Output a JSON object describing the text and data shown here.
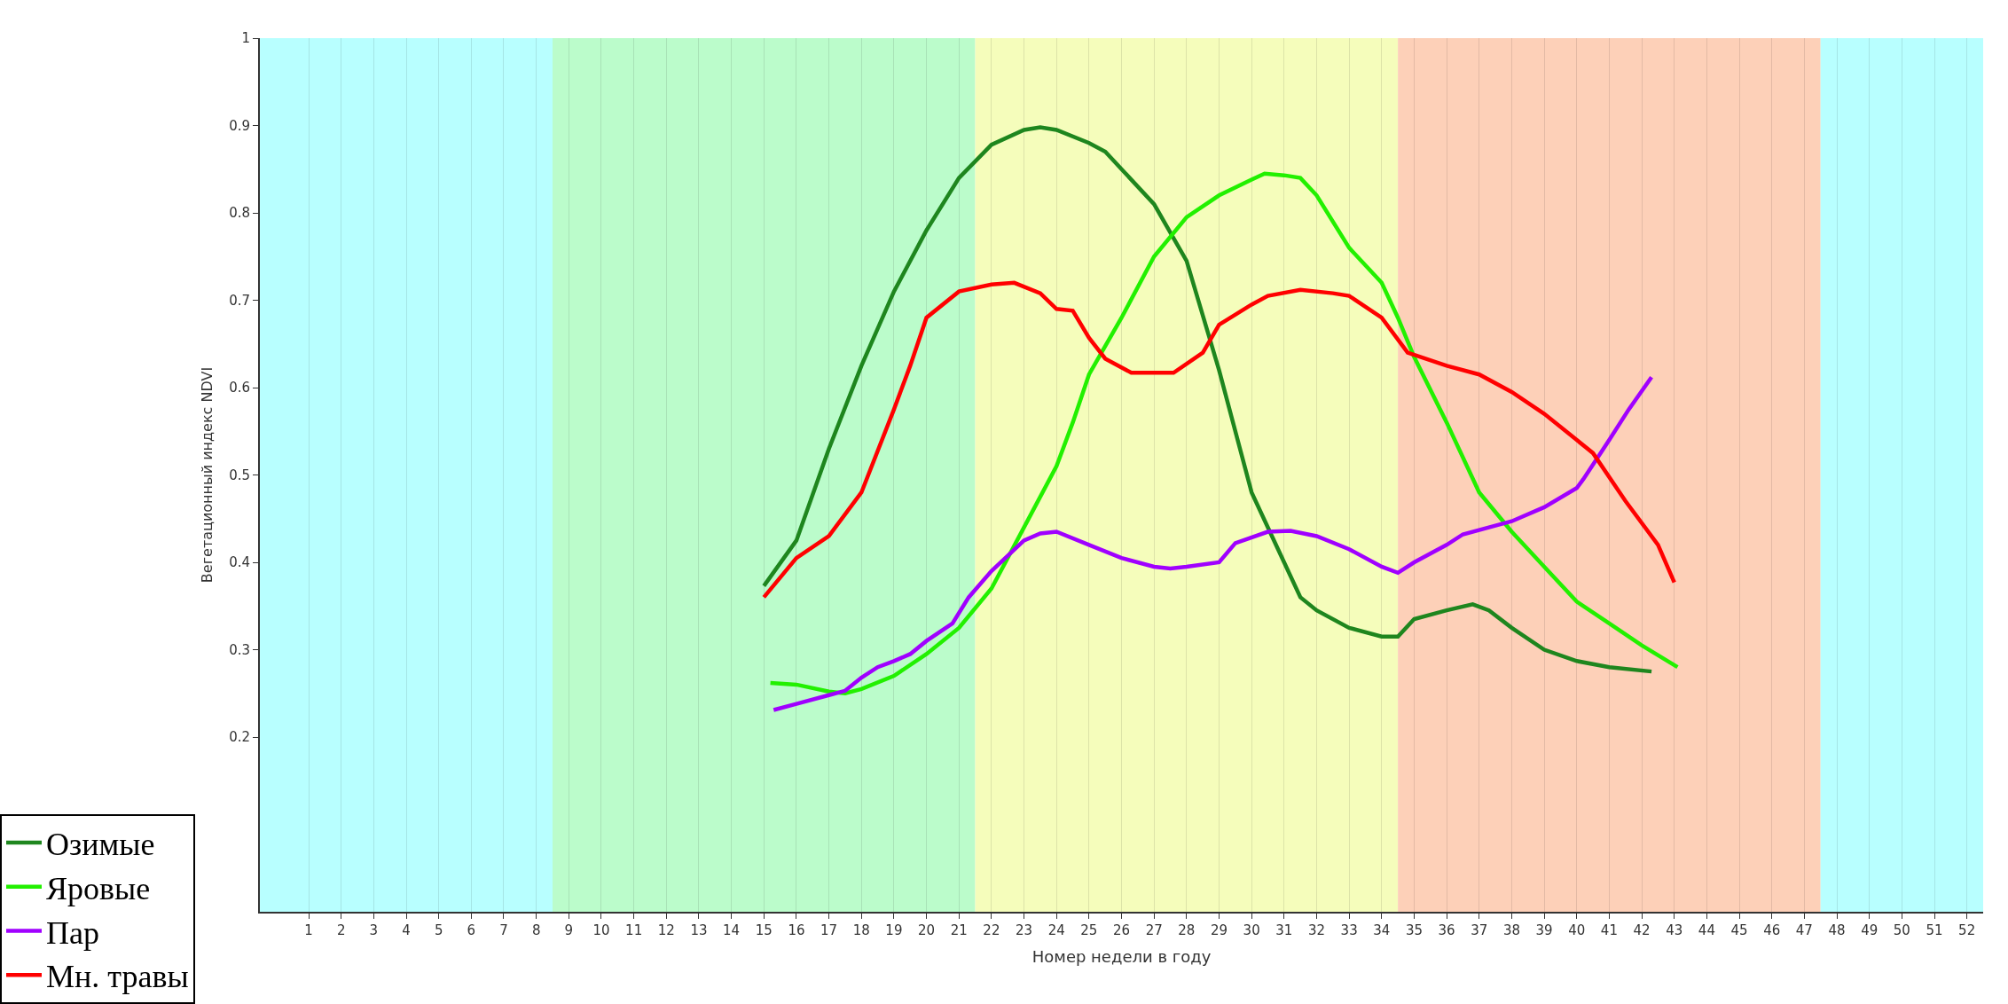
{
  "chart_data": {
    "type": "line",
    "xlabel": "Номер недели в году",
    "ylabel": "Вегетационный индекс NDVI",
    "xlim": [
      -0.5,
      52.5
    ],
    "xticks": [
      1,
      2,
      3,
      4,
      5,
      6,
      7,
      8,
      9,
      10,
      11,
      12,
      13,
      14,
      15,
      16,
      17,
      18,
      19,
      20,
      21,
      22,
      23,
      24,
      25,
      26,
      27,
      28,
      29,
      30,
      31,
      32,
      33,
      34,
      35,
      36,
      37,
      38,
      39,
      40,
      41,
      42,
      43,
      44,
      45,
      46,
      47,
      48,
      49,
      50,
      51,
      52
    ],
    "ylim": [
      0,
      1
    ],
    "yticks": [
      0.2,
      0.3,
      0.4,
      0.5,
      0.6,
      0.7,
      0.8,
      0.9,
      1
    ],
    "grid": "x",
    "legend": "bottom left",
    "marker": "none",
    "line_style": "solid",
    "bands": [
      {
        "axis": "x",
        "from": -0.5,
        "to": 8.5,
        "color": "#b8ffff"
      },
      {
        "axis": "x",
        "from": 8.5,
        "to": 21.5,
        "color": "#bbfccb"
      },
      {
        "axis": "x",
        "from": 21.5,
        "to": 34.5,
        "color": "#f5fdbb"
      },
      {
        "axis": "x",
        "from": 34.5,
        "to": 47.5,
        "color": "#fdd0b8"
      },
      {
        "axis": "x",
        "from": 47.5,
        "to": 52.5,
        "color": "#b8ffff"
      }
    ],
    "series": [
      {
        "name": "Озимые",
        "color": "#1e861e",
        "x": [
          15,
          16,
          17,
          18,
          19,
          20,
          21,
          22,
          23,
          23.5,
          24,
          25,
          25.5,
          26,
          27,
          28,
          29,
          30,
          31,
          31.5,
          32,
          33,
          34,
          34.5,
          35,
          36,
          36.8,
          37.3,
          38,
          39,
          40,
          41,
          42.3
        ],
        "values": [
          0.373,
          0.425,
          0.53,
          0.625,
          0.71,
          0.78,
          0.84,
          0.878,
          0.895,
          0.898,
          0.895,
          0.88,
          0.87,
          0.85,
          0.81,
          0.745,
          0.62,
          0.48,
          0.4,
          0.36,
          0.345,
          0.325,
          0.315,
          0.315,
          0.335,
          0.345,
          0.352,
          0.345,
          0.325,
          0.3,
          0.287,
          0.28,
          0.275
        ]
      },
      {
        "name": "Яровые",
        "color": "#22f000",
        "x": [
          15.2,
          16,
          17,
          17.5,
          18,
          19,
          20,
          21,
          22,
          23,
          24,
          24.5,
          25,
          26,
          27,
          28,
          29,
          30,
          30.4,
          31,
          31.5,
          32,
          33,
          34,
          34.5,
          35,
          36,
          37,
          38,
          39,
          40,
          41,
          42,
          43.1
        ],
        "values": [
          0.262,
          0.26,
          0.252,
          0.25,
          0.255,
          0.27,
          0.295,
          0.325,
          0.37,
          0.44,
          0.51,
          0.56,
          0.615,
          0.68,
          0.75,
          0.795,
          0.82,
          0.838,
          0.845,
          0.843,
          0.84,
          0.82,
          0.76,
          0.72,
          0.68,
          0.635,
          0.56,
          0.48,
          0.435,
          0.395,
          0.355,
          0.33,
          0.305,
          0.28
        ]
      },
      {
        "name": "Пар",
        "color": "#a000ff",
        "x": [
          15.3,
          16,
          17,
          17.5,
          18,
          18.5,
          19,
          19.5,
          20,
          20.8,
          21.3,
          22,
          23,
          23.5,
          24,
          25,
          26,
          27,
          27.5,
          28,
          29,
          29.5,
          30.5,
          31.2,
          32,
          33,
          34,
          34.5,
          35,
          36,
          36.5,
          37.5,
          38,
          39,
          40,
          40.2,
          41,
          41.6,
          42.3
        ],
        "values": [
          0.231,
          0.238,
          0.248,
          0.253,
          0.268,
          0.28,
          0.287,
          0.295,
          0.31,
          0.33,
          0.36,
          0.39,
          0.425,
          0.433,
          0.435,
          0.42,
          0.405,
          0.395,
          0.393,
          0.395,
          0.4,
          0.422,
          0.435,
          0.436,
          0.43,
          0.415,
          0.395,
          0.388,
          0.4,
          0.42,
          0.432,
          0.442,
          0.447,
          0.463,
          0.485,
          0.495,
          0.54,
          0.575,
          0.612
        ]
      },
      {
        "name": "Мн. травы",
        "color": "#ff0000",
        "x": [
          15,
          16,
          17,
          18,
          19,
          19.5,
          20,
          21,
          22,
          22.7,
          23.5,
          24,
          24.5,
          25,
          25.5,
          26.3,
          27.6,
          28.5,
          29,
          30,
          30.5,
          31.5,
          32.5,
          33,
          34,
          34.8,
          36,
          37,
          38,
          39,
          40,
          40.5,
          41.5,
          42.5,
          43
        ],
        "values": [
          0.36,
          0.405,
          0.43,
          0.48,
          0.575,
          0.625,
          0.68,
          0.71,
          0.718,
          0.72,
          0.708,
          0.69,
          0.688,
          0.657,
          0.633,
          0.617,
          0.617,
          0.64,
          0.672,
          0.695,
          0.705,
          0.712,
          0.708,
          0.705,
          0.68,
          0.64,
          0.625,
          0.615,
          0.595,
          0.57,
          0.54,
          0.525,
          0.47,
          0.42,
          0.377
        ]
      }
    ]
  }
}
